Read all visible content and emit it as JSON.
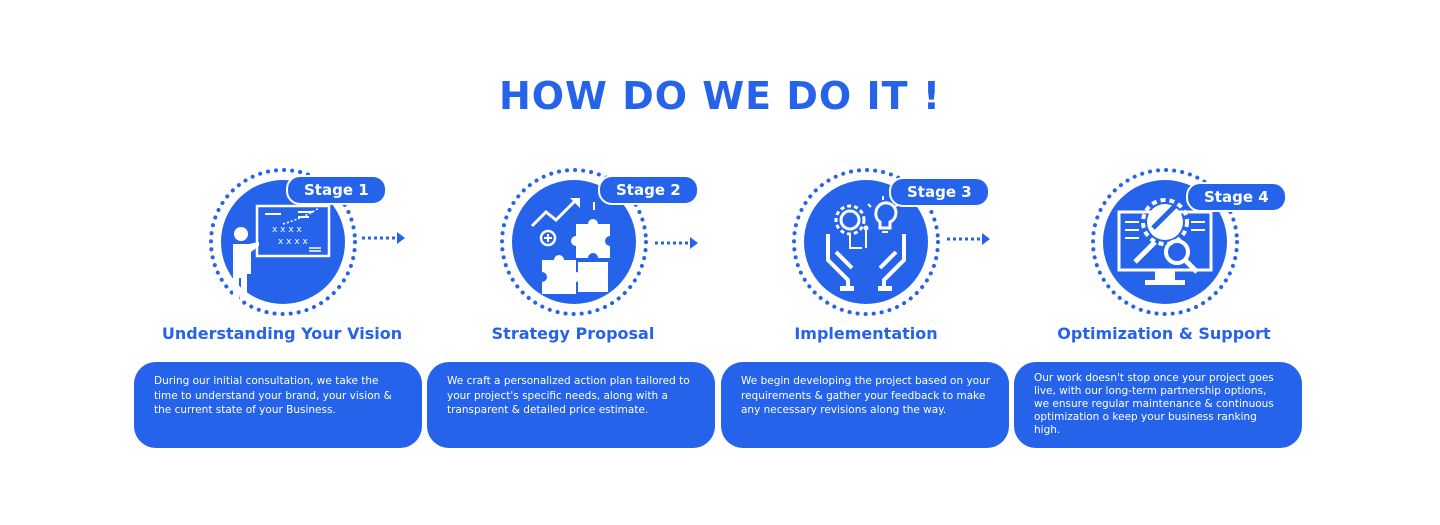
{
  "title": "HOW DO WE DO IT !",
  "colors": {
    "accent": "#2563eb",
    "background": "#ffffff",
    "text_on_accent": "#ffffff"
  },
  "stages": [
    {
      "badge": "Stage 1",
      "heading": "Understanding Your Vision",
      "description": "During our initial consultation, we take the time to understand your brand, your vision & the current state of your Business.",
      "icon": "presentation-board-icon"
    },
    {
      "badge": "Stage 2",
      "heading": "Strategy Proposal",
      "description": "We craft a personalized action plan tailored to your project's specific needs, along with a transparent & detailed price estimate.",
      "icon": "puzzle-growth-icon"
    },
    {
      "badge": "Stage 3",
      "heading": "Implementation",
      "description": "We begin developing the project based on your requirements & gather your feedback to make any necessary revisions along the way.",
      "icon": "hands-gear-bulb-icon"
    },
    {
      "badge": "Stage 4",
      "heading": "Optimization & Support",
      "description": "Our work doesn't stop once your project goes live, with our long-term partnership options, we ensure regular maintenance & continuous optimization o keep your business ranking high.",
      "icon": "monitor-wrench-search-icon"
    }
  ]
}
